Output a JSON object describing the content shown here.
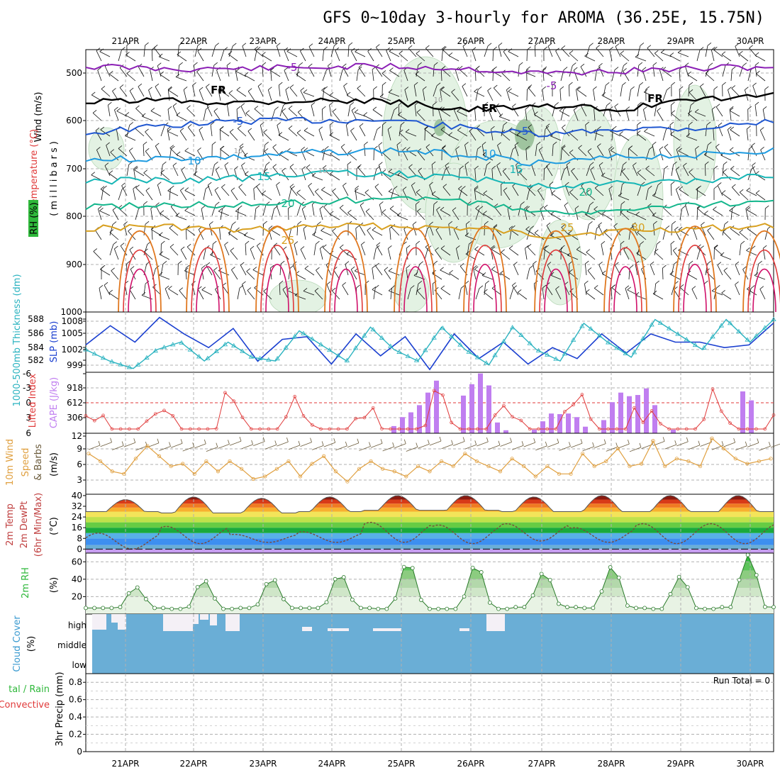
{
  "title": "GFS 0~10day 3-hourly for AROMA (36.25E, 15.75N)",
  "days": [
    "21APR",
    "22APR",
    "23APR",
    "24APR",
    "25APR",
    "26APR",
    "27APR",
    "28APR",
    "29APR",
    "30APR"
  ],
  "colors": {
    "purple": "#8b1fb5",
    "black": "#000000",
    "blue": "#1e56d0",
    "lightblue": "#1e9be0",
    "teal": "#16b6b6",
    "seagreen": "#14b68c",
    "gold": "#d8a020",
    "orange": "#e07820",
    "red": "#e03a3a",
    "magenta": "#d0106a",
    "slp": "#1a3fd0",
    "thick": "#2bb3c0",
    "cape": "#c07ef0",
    "li": "#e03a3a",
    "wind": "#e0a040",
    "cloud": "#6aaed6",
    "rh": "#2fb83b",
    "precip_green": "#2fb83b"
  },
  "panels": {
    "profile": {
      "ylabel_wind": "Wind (m/s)",
      "ylabel_temp": "Temperature (°C)",
      "ylabel_rh": "RH (%)",
      "ylabel_units": "(millibars)",
      "yticks": [
        "500",
        "600",
        "700",
        "800",
        "900",
        "1000"
      ],
      "contour_labels": [
        {
          "text": "-5",
          "color": "purple"
        },
        {
          "text": "-5",
          "color": "purple"
        },
        {
          "text": "FR",
          "color": "black"
        },
        {
          "text": "FR",
          "color": "black"
        },
        {
          "text": "FR",
          "color": "black"
        },
        {
          "text": "-5",
          "color": "blue"
        },
        {
          "text": "-5",
          "color": "blue"
        },
        {
          "text": "10",
          "color": "lightblue"
        },
        {
          "text": "10",
          "color": "lightblue"
        },
        {
          "text": "15",
          "color": "teal"
        },
        {
          "text": "15",
          "color": "teal"
        },
        {
          "text": "20",
          "color": "seagreen"
        },
        {
          "text": "20",
          "color": "seagreen"
        },
        {
          "text": "25",
          "color": "gold"
        },
        {
          "text": "25",
          "color": "gold"
        },
        {
          "text": "30",
          "color": "gold"
        },
        {
          "text": "10",
          "color": "gray"
        },
        {
          "text": "10",
          "color": "gray"
        },
        {
          "text": "10",
          "color": "gray"
        }
      ]
    },
    "slp": {
      "ylabel_thick": "1000-500mb Thickness (dm)",
      "ylabel_slp": "SLP (mb)",
      "left_ticks": [
        "582",
        "584",
        "586",
        "588"
      ],
      "right_ticks": [
        "999",
        "1002",
        "1005",
        "1008"
      ]
    },
    "cape": {
      "ylabel_li": "Lifted Index",
      "ylabel_cape": "CAPE (J/kg)",
      "left_ticks": [
        "-6",
        "-3",
        "0",
        "3",
        "6"
      ],
      "right_ticks": [
        "918",
        "612",
        "306"
      ]
    },
    "wind": {
      "ylabel_a": "10m Wind",
      "ylabel_b": "Speed",
      "ylabel_c": "& Barbs",
      "ylabel_units": "(m/s)",
      "ticks": [
        "12",
        "9",
        "6",
        "3"
      ]
    },
    "temp": {
      "ylabel_a": "2m Temp",
      "ylabel_b": "2m DewPt",
      "ylabel_c": "(6hr Min/Max)",
      "ylabel_units": "(°C)",
      "ticks": [
        "40",
        "32",
        "24",
        "16",
        "8",
        "0"
      ]
    },
    "rh": {
      "ylabel": "2m RH",
      "ylabel_units": "(%)",
      "ticks": [
        "60",
        "40",
        "20"
      ]
    },
    "cloud": {
      "ylabel": "Cloud Cover",
      "ylabel_units": "(%)",
      "levels": [
        "high",
        "middle",
        "low"
      ]
    },
    "precip": {
      "ylabel_a": "tal / Rain",
      "ylabel_b": "Convective",
      "ylabel_c": "3hr Precip (mm)",
      "ticks": [
        "0.8",
        "0.6",
        "0.4",
        "0.2",
        "0"
      ],
      "run_total": "Run Total = 0"
    }
  },
  "chart_data": [
    {
      "type": "line",
      "title": "GFS 0~10day 3-hourly for AROMA (36.25E, 15.75N)",
      "panel": "profile",
      "ylabel": "(millibars)",
      "yrange": [
        1000,
        450
      ],
      "series": [
        {
          "name": "-5",
          "pressure_mb": [
            485,
            490,
            490,
            487,
            485,
            490,
            500,
            495,
            490,
            485
          ]
        },
        {
          "name": "FR",
          "pressure_mb": [
            560,
            555,
            560,
            555,
            560,
            575,
            570,
            575,
            555,
            545
          ]
        },
        {
          "name": "5",
          "pressure_mb": [
            625,
            610,
            600,
            598,
            598,
            615,
            630,
            615,
            615,
            600
          ]
        },
        {
          "name": "10",
          "pressure_mb": [
            680,
            678,
            675,
            665,
            660,
            670,
            690,
            675,
            670,
            660
          ]
        },
        {
          "name": "15",
          "pressure_mb": [
            725,
            725,
            720,
            710,
            710,
            720,
            735,
            730,
            725,
            715
          ]
        },
        {
          "name": "20",
          "pressure_mb": [
            780,
            775,
            775,
            770,
            760,
            770,
            790,
            790,
            775,
            770
          ]
        },
        {
          "name": "25",
          "pressure_mb": [
            825,
            820,
            830,
            820,
            820,
            825,
            840,
            830,
            825,
            820
          ]
        }
      ]
    },
    {
      "type": "line",
      "panel": "slp",
      "ylabel": "SLP (mb)",
      "ylim": [
        998,
        1009
      ],
      "y2label": "1000-500mb Thickness (dm)",
      "y2lim": [
        581,
        589
      ],
      "series": [
        {
          "name": "SLP (mb)",
          "values": [
            1003,
            1006.5,
            1003.5,
            1008,
            1005,
            1002.5,
            1006,
            1000,
            1004,
            1004.5,
            999.5,
            1005,
            1001,
            1004.5,
            998.5,
            1005,
            1000.5,
            1003.5,
            999.5,
            1002.5,
            1000.5,
            1005,
            1001.5,
            1005,
            1003.5,
            1003.5,
            1002.5,
            1003,
            1007
          ]
        },
        {
          "name": "1000-500mb Thickness (dm)",
          "values": [
            584,
            582.5,
            581.5,
            584,
            585,
            582.5,
            585,
            583,
            582.5,
            586.5,
            584.5,
            582.5,
            587,
            584,
            582.5,
            587,
            584,
            582,
            587,
            584,
            582.5,
            587.5,
            585,
            583,
            588,
            586,
            584,
            588,
            585,
            588
          ]
        }
      ]
    },
    {
      "type": "bar",
      "panel": "cape",
      "ylabel": "CAPE (J/kg)",
      "y2label": "Lifted Index",
      "ylim": [
        0,
        1020
      ],
      "x_days": [
        "21APR",
        "22APR",
        "23APR",
        "24APR",
        "25APR",
        "26APR",
        "27APR",
        "28APR",
        "29APR",
        "30APR"
      ],
      "series": [
        {
          "name": "CAPE (J/kg)",
          "values_by_day": {
            "25APR": [
              120,
              270,
              350,
              470,
              680,
              880
            ],
            "26APR": [
              630,
              820,
              1000,
              800,
              180,
              50
            ],
            "27APR": [
              60,
              200,
              330,
              320,
              330,
              270,
              110
            ],
            "28APR": [
              220,
              520,
              680,
              620,
              640,
              750,
              470
            ],
            "29APR": [
              60
            ],
            "30APR": [
              700,
              550
            ]
          }
        },
        {
          "name": "Lifted Index",
          "min_values": [
            -5.5,
            -4,
            -4,
            -3.5
          ]
        }
      ]
    },
    {
      "type": "line",
      "panel": "wind",
      "ylabel": "(m/s)",
      "ylim": [
        0,
        12
      ],
      "series": [
        {
          "name": "10m Wind Speed",
          "values": [
            8,
            6.5,
            4.5,
            4,
            7,
            9.5,
            7.5,
            5.5,
            6,
            4,
            6.5,
            4.5,
            6.5,
            5,
            3,
            3.5,
            5,
            6.5,
            3.5,
            6,
            7.5,
            4.5,
            2.5,
            5,
            6.5,
            5,
            4.5,
            3.5,
            5.5,
            4.5,
            6.5,
            5.5,
            8,
            6.5,
            5.5,
            4.5,
            7,
            5.5,
            3.5,
            5.5,
            4,
            4,
            8,
            5.5,
            6.5,
            9,
            5.5,
            6,
            10.5,
            5.5,
            7,
            6.5,
            5.5,
            11,
            9,
            7,
            6,
            6.5,
            7
          ]
        }
      ]
    },
    {
      "type": "area",
      "panel": "temp",
      "ylabel": "(°C)",
      "ylim": [
        -3,
        41
      ],
      "series": [
        {
          "name": "2m Temp",
          "daily_max": [
            37,
            39,
            38,
            39,
            40,
            40,
            39,
            40,
            40
          ],
          "daily_min": [
            28,
            27,
            27,
            28,
            29,
            29,
            28,
            28,
            28
          ]
        },
        {
          "name": "2m DewPt",
          "daily_max": [
            12,
            17,
            11,
            13,
            20,
            18,
            19,
            16,
            19
          ],
          "daily_min": [
            0,
            4,
            5,
            5,
            5,
            4,
            6,
            5,
            4
          ]
        }
      ]
    },
    {
      "type": "area",
      "panel": "rh",
      "ylabel": "(%)",
      "ylim": [
        0,
        70
      ],
      "series": [
        {
          "name": "2m RH",
          "daily_max": [
            31,
            39,
            41,
            46,
            60,
            57,
            48,
            55,
            43,
            68
          ],
          "daily_min": [
            7,
            6,
            7,
            7,
            6,
            6,
            8,
            7,
            6,
            8
          ]
        }
      ]
    },
    {
      "type": "heatmap",
      "panel": "cloud",
      "ylabel": "(%)",
      "categories": [
        "high",
        "middle",
        "low"
      ],
      "description_values": {
        "high": "mostly overcast with gaps",
        "middle": 100,
        "low": 100
      }
    },
    {
      "type": "bar",
      "panel": "precip",
      "ylabel": "3hr Precip (mm)",
      "ylim": [
        0,
        0.9
      ],
      "series": [
        {
          "name": "3hr Precip",
          "values": [
            0
          ]
        }
      ],
      "annotation": "Run Total = 0"
    }
  ]
}
